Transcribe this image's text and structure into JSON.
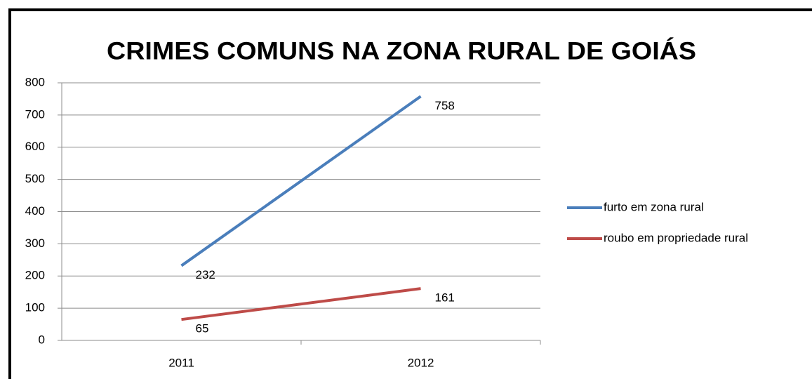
{
  "chart_data": {
    "type": "line",
    "title": "CRIMES COMUNS NA ZONA RURAL DE  GOIÁS",
    "categories": [
      "2011",
      "2012"
    ],
    "series": [
      {
        "name": "furto em zona rural",
        "color": "#4a7ebb",
        "values": [
          232,
          758
        ]
      },
      {
        "name": "roubo em propriedade rural",
        "color": "#be4b48",
        "values": [
          65,
          161
        ]
      }
    ],
    "ylim": [
      0,
      800
    ],
    "yticks": [
      0,
      100,
      200,
      300,
      400,
      500,
      600,
      700,
      800
    ],
    "grid": true,
    "legend": "right"
  }
}
